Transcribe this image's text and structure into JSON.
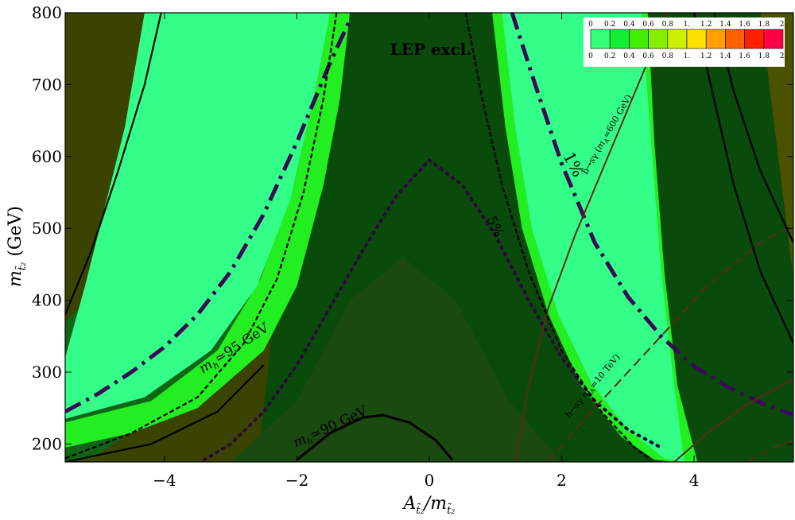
{
  "chart_data": {
    "type": "heatmap",
    "xlabel_base": "A",
    "xlabel_sub": "t̃₂",
    "xlabel_div": "/m",
    "ylabel_base": "m",
    "ylabel_sub": "t̃₂",
    "ylabel_unit": "(GeV)",
    "xlim": [
      -5.5,
      5.5
    ],
    "ylim": [
      175,
      800
    ],
    "xticks": [
      -4,
      -2,
      0,
      2,
      4
    ],
    "xtick_labels": [
      "−4",
      "−2",
      "0",
      "2",
      "4"
    ],
    "yticks": [
      200,
      300,
      400,
      500,
      600,
      700,
      800
    ],
    "ytick_labels": [
      "200",
      "300",
      "400",
      "500",
      "600",
      "700",
      "800"
    ],
    "colorbar": {
      "labels": [
        "0",
        "0.2",
        "0.4",
        "0.6",
        "0.8",
        "1.",
        "1.2",
        "1.4",
        "1.6",
        "1.8",
        "2."
      ],
      "colors": [
        "#33ff77",
        "#11ee33",
        "#44ee00",
        "#88ee00",
        "#ccf000",
        "#ffe000",
        "#ffa000",
        "#ff6000",
        "#ff2000",
        "#ff0044"
      ]
    },
    "annotations": {
      "lep": "LEP excl.",
      "mh95_base": "m",
      "mh95_rest": "≃95 GeV",
      "mh90_base": "m",
      "mh90_rest": "≃90 GeV",
      "one_percent": "1%",
      "five_percent": "5%",
      "vac600_prefix": "b→sγ (",
      "vac600_rest": "=600 GeV)",
      "vac10_prefix": "b→sγ ",
      "vac10_rest": "=10 TeV)",
      "h_sub": "h"
    },
    "region_colors": {
      "olive": "#3a4400",
      "olive2": "#4a5200",
      "darkgreen": "#0a4a0a",
      "green_mid": "#116616",
      "green_band": "#1f8a22",
      "bright_green": "#22ee22",
      "light_green": "#33ff88"
    },
    "curves": {
      "dotted_parabola": [
        [
          -3.4,
          178
        ],
        [
          -3,
          200
        ],
        [
          -2.5,
          245
        ],
        [
          -2,
          310
        ],
        [
          -1.5,
          390
        ],
        [
          -1,
          470
        ],
        [
          -0.5,
          545
        ],
        [
          0,
          595
        ],
        [
          0.5,
          560
        ],
        [
          1,
          490
        ],
        [
          1.5,
          400
        ],
        [
          2,
          320
        ],
        [
          2.5,
          260
        ],
        [
          3,
          220
        ],
        [
          3.5,
          195
        ]
      ],
      "mh90_curve": [
        [
          -2,
          178
        ],
        [
          -1.5,
          215
        ],
        [
          -1.0,
          237
        ],
        [
          -0.7,
          240
        ],
        [
          -0.3,
          230
        ],
        [
          0.1,
          205
        ],
        [
          0.35,
          178
        ]
      ],
      "dashdot_left": [
        [
          -5.5,
          245
        ],
        [
          -5,
          270
        ],
        [
          -4.5,
          300
        ],
        [
          -4,
          335
        ],
        [
          -3.5,
          380
        ],
        [
          -3,
          440
        ],
        [
          -2.5,
          520
        ],
        [
          -2,
          620
        ],
        [
          -1.5,
          730
        ],
        [
          -1.2,
          790
        ]
      ],
      "dashdot_right": [
        [
          1.25,
          800
        ],
        [
          1.6,
          700
        ],
        [
          2.0,
          590
        ],
        [
          2.5,
          480
        ],
        [
          3.0,
          405
        ],
        [
          3.5,
          350
        ],
        [
          4.0,
          308
        ],
        [
          4.5,
          280
        ],
        [
          5.0,
          258
        ],
        [
          5.5,
          240
        ]
      ],
      "brown_solid": [
        [
          1.3,
          175
        ],
        [
          1.5,
          280
        ],
        [
          1.8,
          390
        ],
        [
          2.2,
          490
        ],
        [
          2.7,
          600
        ],
        [
          3.2,
          710
        ],
        [
          3.6,
          800
        ]
      ],
      "brown_dashed": [
        [
          1.8,
          175
        ],
        [
          2.3,
          230
        ],
        [
          3.0,
          300
        ],
        [
          3.6,
          360
        ],
        [
          4.2,
          420
        ],
        [
          5.0,
          480
        ],
        [
          5.5,
          505
        ]
      ],
      "brown_low_solid": [
        [
          3.7,
          175
        ],
        [
          4.2,
          215
        ],
        [
          4.8,
          255
        ],
        [
          5.5,
          290
        ]
      ],
      "brown_low_dashed": [
        [
          4.8,
          175
        ],
        [
          5.2,
          195
        ],
        [
          5.5,
          205
        ]
      ]
    }
  }
}
